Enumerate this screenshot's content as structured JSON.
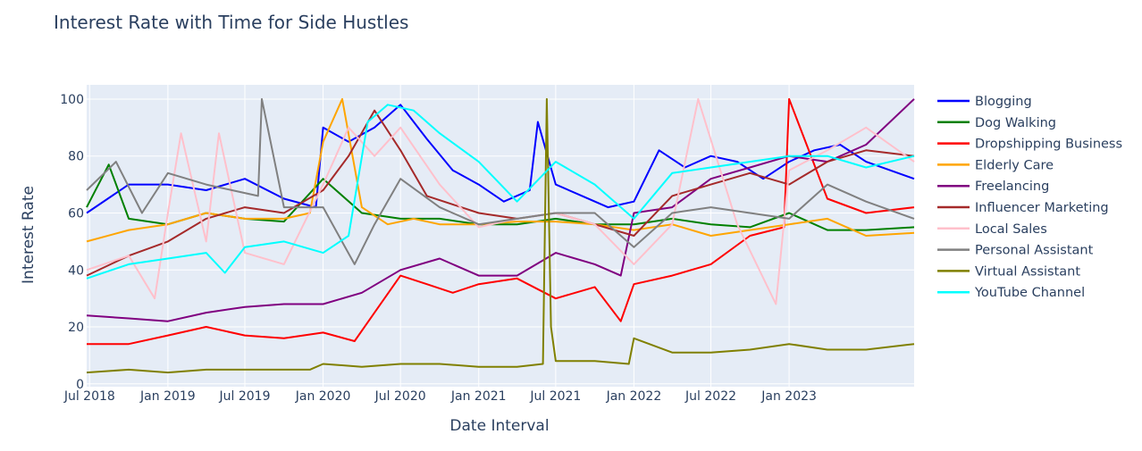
{
  "chart_data": {
    "type": "line",
    "title": "Interest Rate with Time for Side Hustles",
    "xlabel": "Date Interval",
    "ylabel": "Interest Rate",
    "x_tick_labels": [
      "Jul 2018",
      "Jan 2019",
      "Jul 2019",
      "Jan 2020",
      "Jul 2020",
      "Jan 2021",
      "Jul 2021",
      "Jan 2022",
      "Jul 2022",
      "Jan 2023"
    ],
    "x_ticks": [
      "2018-07-01",
      "2019-01-01",
      "2019-07-01",
      "2020-01-01",
      "2020-07-01",
      "2021-01-01",
      "2021-07-01",
      "2022-01-01",
      "2022-07-01",
      "2023-01-01"
    ],
    "xlim": [
      "2018-06-24",
      "2023-10-22"
    ],
    "y_ticks": [
      0,
      20,
      40,
      60,
      80,
      100
    ],
    "ylim": [
      -1,
      105
    ],
    "grid": true,
    "legend": "right",
    "plot_background": "#e5ecf6",
    "series": [
      {
        "name": "Blogging",
        "color": "#0000ff",
        "x": [
          "2018-06-24",
          "2018-10-01",
          "2019-01-01",
          "2019-04-01",
          "2019-07-01",
          "2019-10-01",
          "2019-12-15",
          "2020-01-01",
          "2020-03-01",
          "2020-05-01",
          "2020-07-01",
          "2020-09-01",
          "2020-11-01",
          "2021-01-01",
          "2021-03-01",
          "2021-05-01",
          "2021-05-20",
          "2021-07-01",
          "2021-09-01",
          "2021-11-01",
          "2022-01-01",
          "2022-03-01",
          "2022-05-01",
          "2022-07-01",
          "2022-09-01",
          "2022-11-01",
          "2023-01-01",
          "2023-03-01",
          "2023-05-01",
          "2023-07-01",
          "2023-10-22"
        ],
        "values": [
          60,
          70,
          70,
          68,
          72,
          65,
          62,
          90,
          85,
          90,
          98,
          86,
          75,
          70,
          64,
          68,
          92,
          70,
          66,
          62,
          64,
          82,
          76,
          80,
          78,
          72,
          78,
          82,
          84,
          78,
          72
        ]
      },
      {
        "name": "Dog Walking",
        "color": "#008000",
        "x": [
          "2018-06-24",
          "2018-08-15",
          "2018-10-01",
          "2019-01-01",
          "2019-04-01",
          "2019-07-01",
          "2019-10-01",
          "2020-01-01",
          "2020-04-01",
          "2020-07-01",
          "2020-10-01",
          "2021-01-01",
          "2021-04-01",
          "2021-07-01",
          "2021-10-01",
          "2022-01-01",
          "2022-04-01",
          "2022-07-01",
          "2022-10-01",
          "2023-01-01",
          "2023-04-01",
          "2023-07-01",
          "2023-10-22"
        ],
        "values": [
          62,
          77,
          58,
          56,
          60,
          58,
          57,
          72,
          60,
          58,
          58,
          56,
          56,
          58,
          56,
          56,
          58,
          56,
          55,
          60,
          54,
          54,
          55
        ]
      },
      {
        "name": "Dropshipping Business",
        "color": "#ff0000",
        "x": [
          "2018-06-24",
          "2018-10-01",
          "2019-01-01",
          "2019-04-01",
          "2019-07-01",
          "2019-10-01",
          "2020-01-01",
          "2020-03-15",
          "2020-05-01",
          "2020-07-01",
          "2020-09-01",
          "2020-11-01",
          "2021-01-01",
          "2021-04-01",
          "2021-07-01",
          "2021-10-01",
          "2021-12-01",
          "2022-01-01",
          "2022-04-01",
          "2022-07-01",
          "2022-10-01",
          "2022-12-20",
          "2023-01-01",
          "2023-04-01",
          "2023-07-01",
          "2023-10-22"
        ],
        "values": [
          14,
          14,
          17,
          20,
          17,
          16,
          18,
          15,
          25,
          38,
          35,
          32,
          35,
          37,
          30,
          34,
          22,
          35,
          38,
          42,
          52,
          55,
          100,
          65,
          60,
          62
        ]
      },
      {
        "name": "Elderly Care",
        "color": "#ffa500",
        "x": [
          "2018-06-24",
          "2018-10-01",
          "2019-01-01",
          "2019-04-01",
          "2019-07-01",
          "2019-10-01",
          "2019-12-01",
          "2020-01-01",
          "2020-02-15",
          "2020-04-01",
          "2020-06-01",
          "2020-08-01",
          "2020-10-01",
          "2021-01-01",
          "2021-04-01",
          "2021-07-01",
          "2021-10-01",
          "2022-01-01",
          "2022-04-01",
          "2022-07-01",
          "2022-10-01",
          "2023-01-01",
          "2023-04-01",
          "2023-07-01",
          "2023-10-22"
        ],
        "values": [
          50,
          54,
          56,
          60,
          58,
          58,
          60,
          85,
          100,
          62,
          56,
          58,
          56,
          56,
          57,
          57,
          56,
          54,
          56,
          52,
          54,
          56,
          58,
          52,
          53
        ]
      },
      {
        "name": "Freelancing",
        "color": "#800080",
        "x": [
          "2018-06-24",
          "2018-10-01",
          "2019-01-01",
          "2019-04-01",
          "2019-07-01",
          "2019-10-01",
          "2020-01-01",
          "2020-04-01",
          "2020-07-01",
          "2020-10-01",
          "2021-01-01",
          "2021-04-01",
          "2021-07-01",
          "2021-10-01",
          "2021-12-01",
          "2022-01-01",
          "2022-04-01",
          "2022-07-01",
          "2022-10-01",
          "2023-01-01",
          "2023-04-01",
          "2023-07-01",
          "2023-10-22"
        ],
        "values": [
          24,
          23,
          22,
          25,
          27,
          28,
          28,
          32,
          40,
          44,
          38,
          38,
          46,
          42,
          38,
          60,
          62,
          72,
          76,
          80,
          78,
          84,
          100
        ]
      },
      {
        "name": "Influencer Marketing",
        "color": "#a52a2a",
        "x": [
          "2018-06-24",
          "2018-10-01",
          "2019-01-01",
          "2019-04-01",
          "2019-07-01",
          "2019-10-01",
          "2020-01-01",
          "2020-03-01",
          "2020-05-01",
          "2020-07-01",
          "2020-09-01",
          "2021-01-01",
          "2021-04-01",
          "2021-07-01",
          "2021-10-01",
          "2022-01-01",
          "2022-04-01",
          "2022-07-01",
          "2022-10-01",
          "2023-01-01",
          "2023-04-01",
          "2023-07-01",
          "2023-10-22"
        ],
        "values": [
          38,
          45,
          50,
          58,
          62,
          60,
          68,
          80,
          96,
          82,
          66,
          60,
          58,
          60,
          56,
          52,
          66,
          70,
          74,
          70,
          78,
          82,
          80
        ]
      },
      {
        "name": "Local Sales",
        "color": "#ffc0cb",
        "x": [
          "2018-06-24",
          "2018-10-01",
          "2018-12-01",
          "2019-01-01",
          "2019-02-01",
          "2019-04-01",
          "2019-05-01",
          "2019-07-01",
          "2019-10-01",
          "2020-01-01",
          "2020-03-01",
          "2020-05-01",
          "2020-07-01",
          "2020-10-01",
          "2021-01-01",
          "2021-04-01",
          "2021-07-01",
          "2021-10-01",
          "2022-01-01",
          "2022-04-01",
          "2022-06-01",
          "2022-09-01",
          "2022-12-01",
          "2023-01-01",
          "2023-04-01",
          "2023-07-01",
          "2023-10-22"
        ],
        "values": [
          40,
          45,
          30,
          60,
          88,
          50,
          88,
          46,
          42,
          70,
          90,
          80,
          90,
          70,
          55,
          58,
          60,
          56,
          42,
          56,
          100,
          56,
          28,
          75,
          82,
          90,
          78
        ]
      },
      {
        "name": "Personal Assistant",
        "color": "#808080",
        "x": [
          "2018-06-24",
          "2018-09-01",
          "2018-11-01",
          "2019-01-01",
          "2019-04-01",
          "2019-06-01",
          "2019-08-01",
          "2019-08-10",
          "2019-10-01",
          "2020-01-01",
          "2020-03-15",
          "2020-05-01",
          "2020-07-01",
          "2020-10-01",
          "2021-01-01",
          "2021-04-01",
          "2021-07-01",
          "2021-10-01",
          "2022-01-01",
          "2022-04-01",
          "2022-07-01",
          "2022-10-01",
          "2023-01-01",
          "2023-04-01",
          "2023-07-01",
          "2023-10-22"
        ],
        "values": [
          68,
          78,
          60,
          74,
          70,
          68,
          66,
          100,
          62,
          62,
          42,
          56,
          72,
          62,
          56,
          58,
          60,
          60,
          48,
          60,
          62,
          60,
          58,
          70,
          64,
          58
        ]
      },
      {
        "name": "Virtual Assistant",
        "color": "#808000",
        "x": [
          "2018-06-24",
          "2018-10-01",
          "2019-01-01",
          "2019-04-01",
          "2019-07-01",
          "2019-10-01",
          "2019-12-01",
          "2020-01-01",
          "2020-04-01",
          "2020-07-01",
          "2020-10-01",
          "2021-01-01",
          "2021-04-01",
          "2021-06-01",
          "2021-06-10",
          "2021-06-20",
          "2021-07-01",
          "2021-10-01",
          "2021-12-20",
          "2022-01-01",
          "2022-04-01",
          "2022-07-01",
          "2022-10-01",
          "2023-01-01",
          "2023-04-01",
          "2023-07-01",
          "2023-10-22"
        ],
        "values": [
          4,
          5,
          4,
          5,
          5,
          5,
          5,
          7,
          6,
          7,
          7,
          6,
          6,
          7,
          100,
          20,
          8,
          8,
          7,
          16,
          11,
          11,
          12,
          14,
          12,
          12,
          14
        ]
      },
      {
        "name": "YouTube Channel",
        "color": "#00ffff",
        "x": [
          "2018-06-24",
          "2018-10-01",
          "2019-01-01",
          "2019-04-01",
          "2019-05-15",
          "2019-07-01",
          "2019-10-01",
          "2020-01-01",
          "2020-03-01",
          "2020-04-15",
          "2020-06-01",
          "2020-08-01",
          "2020-10-01",
          "2021-01-01",
          "2021-04-01",
          "2021-07-01",
          "2021-10-01",
          "2022-01-01",
          "2022-04-01",
          "2022-07-01",
          "2022-10-01",
          "2023-01-01",
          "2023-04-01",
          "2023-07-01",
          "2023-10-22"
        ],
        "values": [
          37,
          42,
          44,
          46,
          39,
          48,
          50,
          46,
          52,
          92,
          98,
          96,
          88,
          78,
          64,
          78,
          70,
          58,
          74,
          76,
          78,
          80,
          80,
          76,
          80
        ]
      }
    ]
  }
}
